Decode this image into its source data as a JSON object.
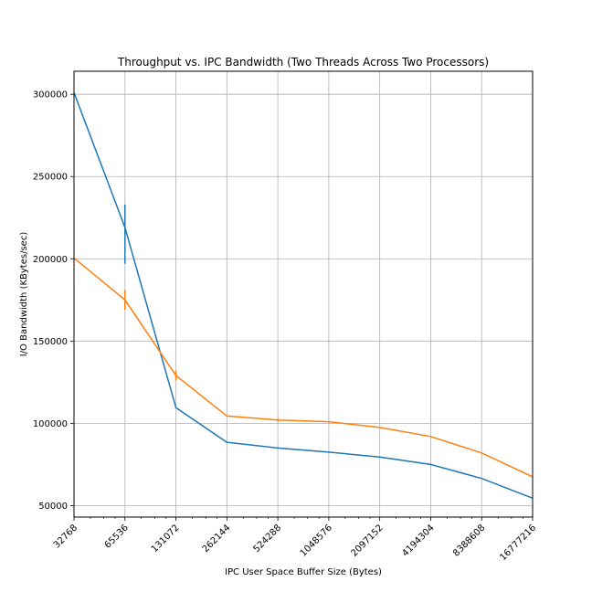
{
  "chart_data": {
    "type": "line",
    "title": "Throughput vs. IPC Bandwidth (Two Threads Across Two Processors)",
    "xlabel": "IPC User Space Buffer Size (Bytes)",
    "ylabel": "I/O Bandwidth (KBytes/sec)",
    "x_scale": "log2",
    "grid": true,
    "xlim": [
      32768,
      16777216
    ],
    "ylim": [
      43000,
      314000
    ],
    "x_ticks": [
      32768,
      65536,
      131072,
      262144,
      524288,
      1048576,
      2097152,
      4194304,
      8388608,
      16777216
    ],
    "x_tick_labels": [
      "32768",
      "65536",
      "131072",
      "262144",
      "524288",
      "1048576",
      "2097152",
      "4194304",
      "8388608",
      "16777216"
    ],
    "y_ticks": [
      50000,
      100000,
      150000,
      200000,
      250000,
      300000
    ],
    "y_tick_labels": [
      "50000",
      "100000",
      "150000",
      "200000",
      "250000",
      "300000"
    ],
    "series": [
      {
        "color": "#1f77b4",
        "x": [
          32768,
          65536,
          131072,
          262144,
          524288,
          1048576,
          2097152,
          4194304,
          8388608,
          16777216
        ],
        "y": [
          301000,
          219000,
          109500,
          88500,
          85000,
          82500,
          79500,
          75000,
          66500,
          54500
        ],
        "error_bars": [
          {
            "x": 65536,
            "low": 197000,
            "high": 233000
          }
        ]
      },
      {
        "color": "#ff7f0e",
        "x": [
          32768,
          65536,
          131072,
          262144,
          524288,
          1048576,
          2097152,
          4194304,
          8388608,
          16777216
        ],
        "y": [
          200500,
          175000,
          129000,
          104500,
          102000,
          101000,
          97500,
          92000,
          82000,
          67500
        ],
        "error_bars": [
          {
            "x": 65536,
            "low": 169000,
            "high": 181000
          },
          {
            "x": 131072,
            "low": 126000,
            "high": 132000
          },
          {
            "x": 524288,
            "low": 101000,
            "high": 103000
          }
        ]
      }
    ]
  }
}
